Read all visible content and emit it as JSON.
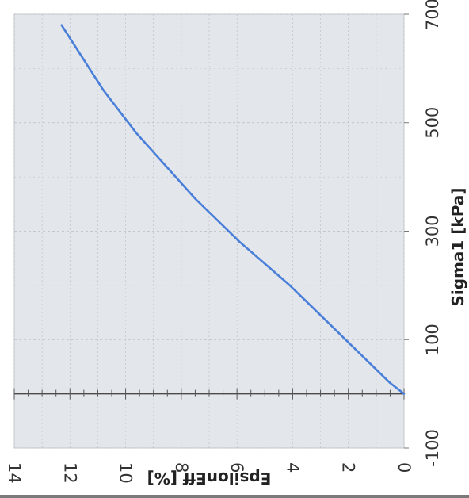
{
  "chart_data": {
    "type": "line",
    "rotation": "rotated 90 degrees",
    "xlabel": "Sigma1 [kPa]",
    "ylabel": "EpsilonEff [%]",
    "xlim": [
      -100,
      700
    ],
    "ylim": [
      0,
      14
    ],
    "x_ticks": [
      "-100",
      "100",
      "300",
      "500",
      "700"
    ],
    "y_ticks": [
      "0",
      "2",
      "4",
      "6",
      "8",
      "10",
      "12",
      "14"
    ],
    "grid": true,
    "legend": "none",
    "colors": {
      "line": "#4a7fd9",
      "plot_background": "#e3e6ea",
      "grid": "#b9bec5"
    },
    "series": [
      {
        "x": [
          0,
          20,
          45,
          70,
          100,
          130,
          160,
          200,
          240,
          280,
          320,
          360,
          400,
          440,
          480,
          520,
          560,
          600,
          640,
          680
        ],
        "y": [
          0,
          0.5,
          1.0,
          1.5,
          2.1,
          2.7,
          3.3,
          4.1,
          5.0,
          5.9,
          6.7,
          7.5,
          8.2,
          8.9,
          9.6,
          10.2,
          10.8,
          11.3,
          11.8,
          12.3
        ]
      }
    ]
  }
}
